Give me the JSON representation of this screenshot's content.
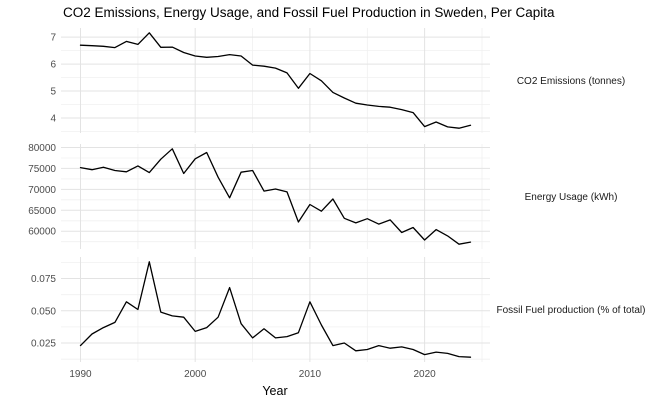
{
  "title": "CO2 Emissions, Energy Usage, and Fossil Fuel Production in Sweden, Per Capita",
  "x_axis_label": "Year",
  "colors": {
    "background": "#ffffff",
    "line": "#000000",
    "grid_major": "#e3e3e3",
    "grid_minor": "#f0f0f0",
    "axis_text": "#4d4d4d",
    "title_text": "#000000",
    "axis_title_text": "#000000",
    "strip_text": "#1a1a1a"
  },
  "chart_data": {
    "type": "line",
    "title": "CO2 Emissions, Energy Usage, and Fossil Fuel Production in Sweden, Per Capita",
    "xlabel": "Year",
    "x_range_shown": [
      1990,
      2024
    ],
    "grid": "major and minor, light gray on white (ggplot theme_minimal style)",
    "legend_position": "none (facet strip labels on right side)",
    "x": [
      1990,
      1991,
      1992,
      1993,
      1994,
      1995,
      1996,
      1997,
      1998,
      1999,
      2000,
      2001,
      2002,
      2003,
      2004,
      2005,
      2006,
      2007,
      2008,
      2009,
      2010,
      2011,
      2012,
      2013,
      2014,
      2015,
      2016,
      2017,
      2018,
      2019,
      2020,
      2021,
      2022,
      2023,
      2024
    ],
    "x_major_ticks": [
      1990,
      2000,
      2010,
      2020
    ],
    "x_major_tick_labels": [
      "1990",
      "2000",
      "2010",
      "2020"
    ],
    "x_minor_ticks": [
      1995,
      2005,
      2015,
      2025
    ],
    "facets": [
      {
        "label": "CO2 Emissions (tonnes)",
        "y_major_ticks": [
          4,
          5,
          6,
          7
        ],
        "y_major_tick_labels": [
          "4",
          "5",
          "6",
          "7"
        ],
        "y_minor_ticks": [
          3.5,
          4.5,
          5.5,
          6.5
        ],
        "values": [
          6.7,
          6.68,
          6.66,
          6.61,
          6.84,
          6.73,
          7.16,
          6.62,
          6.63,
          6.43,
          6.3,
          6.25,
          6.28,
          6.35,
          6.3,
          5.96,
          5.92,
          5.85,
          5.67,
          5.1,
          5.65,
          5.38,
          4.95,
          4.74,
          4.55,
          4.48,
          4.43,
          4.4,
          4.31,
          4.2,
          3.68,
          3.85,
          3.67,
          3.62,
          3.73
        ]
      },
      {
        "label": "Energy Usage (kWh)",
        "y_major_ticks": [
          60000,
          65000,
          70000,
          75000,
          80000
        ],
        "y_major_tick_labels": [
          "60000",
          "65000",
          "70000",
          "75000",
          "80000"
        ],
        "y_minor_ticks": [
          57500,
          62500,
          67500,
          72500,
          77500
        ],
        "values": [
          75200,
          74700,
          75300,
          74500,
          74200,
          75600,
          74000,
          77200,
          79700,
          73800,
          77300,
          78800,
          72900,
          68000,
          74100,
          74500,
          69600,
          70100,
          69400,
          62200,
          66400,
          64800,
          67700,
          63100,
          62000,
          63000,
          61700,
          62700,
          59700,
          60900,
          57900,
          60400,
          58900,
          56900,
          57400
        ]
      },
      {
        "label": "Fossil Fuel production (% of total)",
        "y_major_ticks": [
          0.025,
          0.05,
          0.075
        ],
        "y_major_tick_labels": [
          "0.025",
          "0.050",
          "0.075"
        ],
        "y_minor_ticks": [
          0.0125,
          0.0375,
          0.0625,
          0.0875
        ],
        "values": [
          0.023,
          0.032,
          0.037,
          0.041,
          0.057,
          0.051,
          0.088,
          0.049,
          0.046,
          0.045,
          0.034,
          0.037,
          0.045,
          0.068,
          0.04,
          0.029,
          0.036,
          0.029,
          0.03,
          0.033,
          0.057,
          0.039,
          0.023,
          0.025,
          0.019,
          0.02,
          0.023,
          0.021,
          0.022,
          0.02,
          0.016,
          0.018,
          0.017,
          0.0145,
          0.014
        ]
      }
    ]
  }
}
